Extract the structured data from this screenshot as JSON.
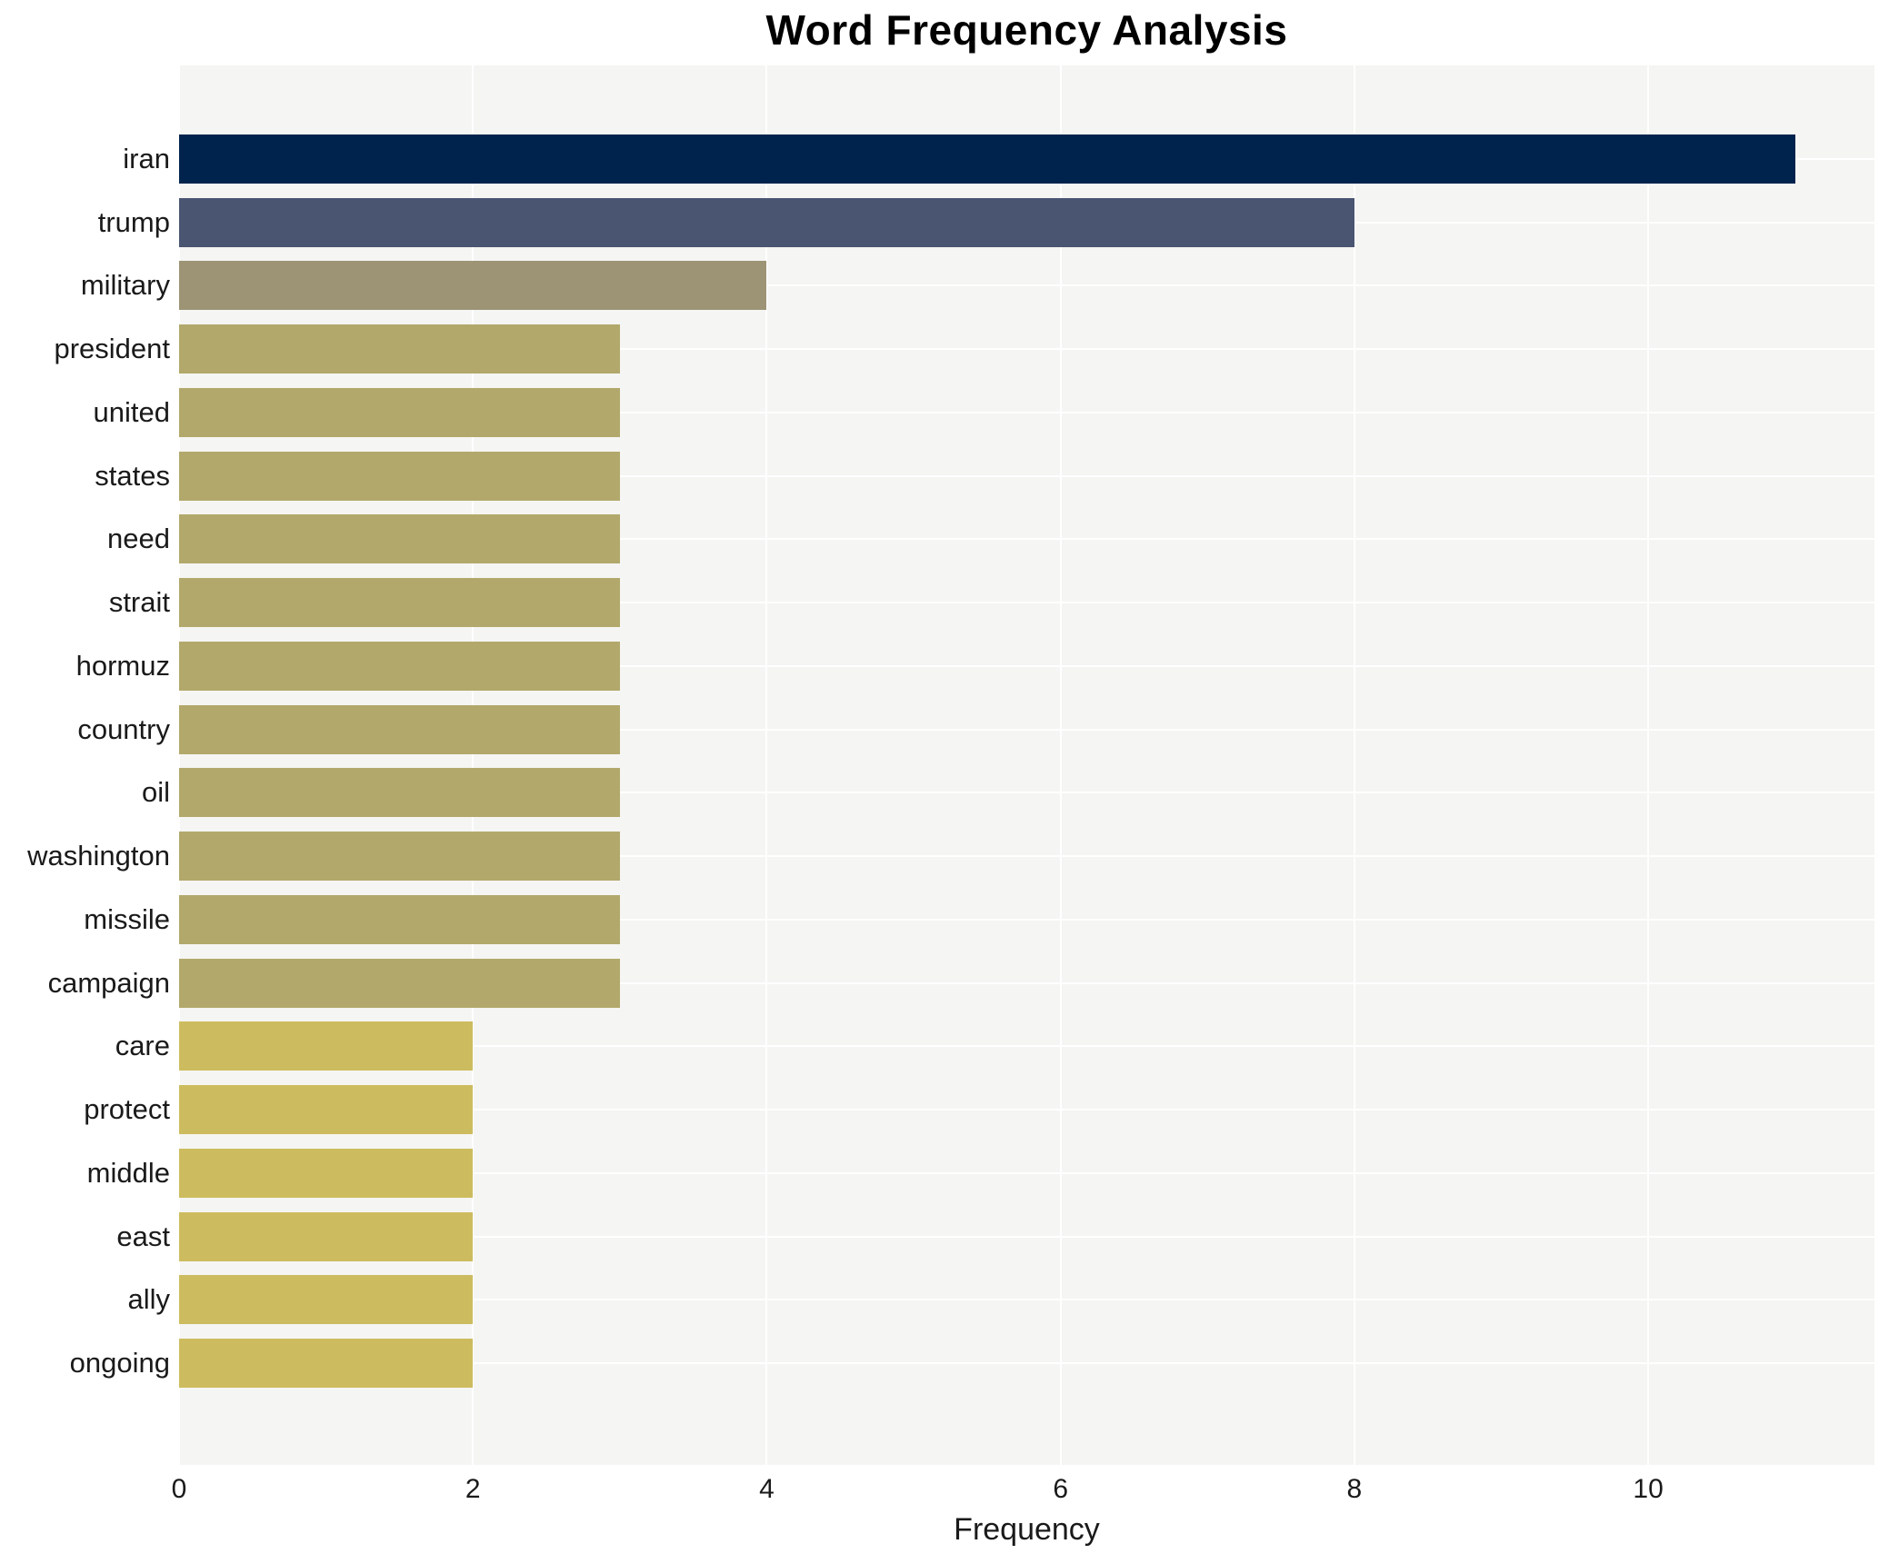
{
  "title": "Word Frequency Analysis",
  "xlabel": "Frequency",
  "chart_data": {
    "type": "bar",
    "orientation": "horizontal",
    "title": "Word Frequency Analysis",
    "xlabel": "Frequency",
    "ylabel": "",
    "categories": [
      "iran",
      "trump",
      "military",
      "president",
      "united",
      "states",
      "need",
      "strait",
      "hormuz",
      "country",
      "oil",
      "washington",
      "missile",
      "campaign",
      "care",
      "protect",
      "middle",
      "east",
      "ally",
      "ongoing"
    ],
    "values": [
      11,
      8,
      4,
      3,
      3,
      3,
      3,
      3,
      3,
      3,
      3,
      3,
      3,
      3,
      2,
      2,
      2,
      2,
      2,
      2
    ],
    "bar_colors": [
      "#00234d",
      "#4a5572",
      "#9d9476",
      "#b2a86b",
      "#b2a86b",
      "#b2a86b",
      "#b2a86b",
      "#b2a86b",
      "#b2a86b",
      "#b2a86b",
      "#b2a86b",
      "#b2a86b",
      "#b2a86b",
      "#b2a86b",
      "#cdbc5f",
      "#cdbc5f",
      "#cdbc5f",
      "#cdbc5f",
      "#cdbc5f",
      "#cdbc5f"
    ],
    "xlim": [
      0,
      11.54
    ],
    "x_ticks": [
      0,
      2,
      4,
      6,
      8,
      10
    ],
    "grid": true,
    "legend": false,
    "plot_background": "#f5f5f3",
    "gridline_color": "#ffffff",
    "figure_background": "#ffffff"
  }
}
